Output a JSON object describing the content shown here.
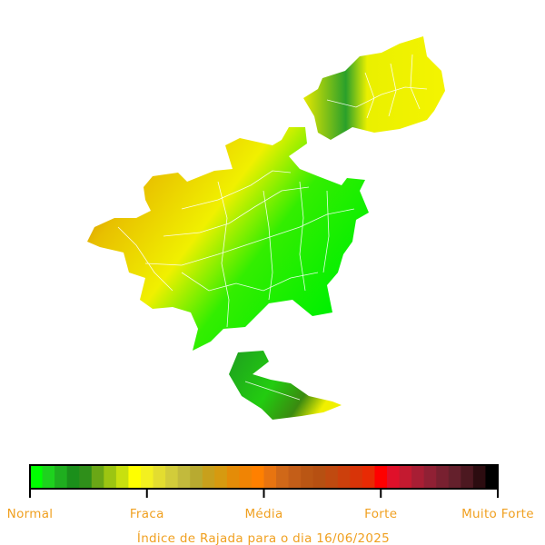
{
  "legend": {
    "labels": [
      "Normal",
      "Fraca",
      "Média",
      "Forte",
      "Muito Forte"
    ],
    "colors": [
      "#00ff00",
      "#1ed21e",
      "#1fae1f",
      "#1b8f1b",
      "#2f8f1a",
      "#6aa716",
      "#9cc512",
      "#c8e00f",
      "#ffff00",
      "#f3f020",
      "#e3dd30",
      "#d2cc3a",
      "#c2ba3c",
      "#b8aa30",
      "#c8a01c",
      "#d69a10",
      "#e48c08",
      "#f08404",
      "#ff8000",
      "#e87410",
      "#d06818",
      "#c45e18",
      "#ba5614",
      "#b65012",
      "#c04a10",
      "#cc400c",
      "#d83408",
      "#e82a04",
      "#ff0000",
      "#e0102a",
      "#c41a30",
      "#a81e34",
      "#902034",
      "#782030",
      "#64202c",
      "#4c1820",
      "#2c0c10",
      "#000000"
    ]
  },
  "title": "Índice de Rajada para o dia 16/06/2025"
}
